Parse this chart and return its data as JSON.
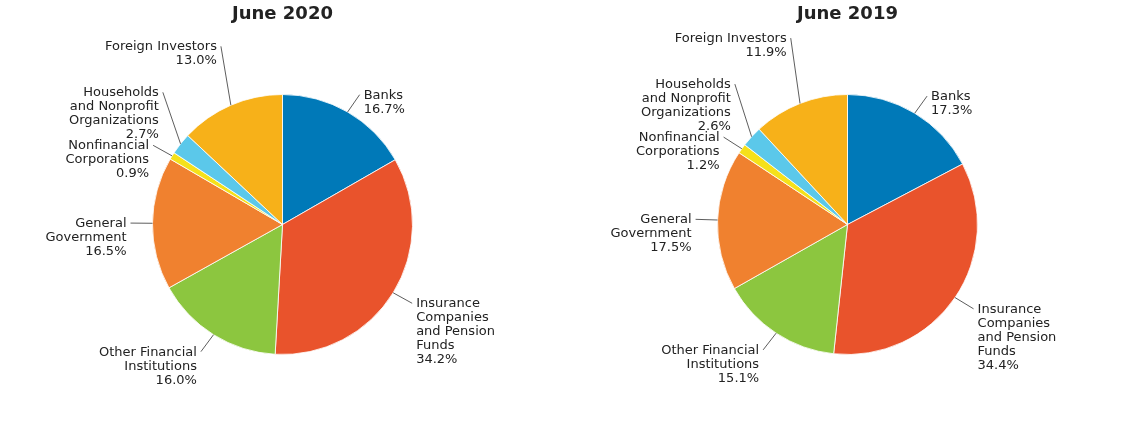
{
  "chart_data": [
    {
      "type": "pie",
      "title": "June 2020",
      "categories": [
        "Banks",
        "Insurance\nCompanies\nand Pension\nFunds",
        "Other Financial\nInstitutions",
        "General\nGovernment",
        "Nonfinancial\nCorporations",
        "Households\nand Nonprofit\nOrganizations",
        "Foreign Investors"
      ],
      "values": [
        16.7,
        34.2,
        16.0,
        16.5,
        0.9,
        2.7,
        13.0
      ],
      "value_labels": [
        "16.7%",
        "34.2%",
        "16.0%",
        "16.5%",
        "0.9%",
        "2.7%",
        "13.0%"
      ],
      "colors": [
        "#0079b8",
        "#e9532c",
        "#8cc63f",
        "#f0812f",
        "#f5e11a",
        "#5bc8ea",
        "#f7b119"
      ],
      "legend": false
    },
    {
      "type": "pie",
      "title": "June 2019",
      "categories": [
        "Banks",
        "Insurance\nCompanies\nand Pension\nFunds",
        "Other Financial\nInstitutions",
        "General\nGovernment",
        "Nonfinancial\nCorporations",
        "Households\nand Nonprofit\nOrganizations",
        "Foreign Investors"
      ],
      "values": [
        17.3,
        34.4,
        15.1,
        17.5,
        1.2,
        2.6,
        11.9
      ],
      "value_labels": [
        "17.3%",
        "34.4%",
        "15.1%",
        "17.5%",
        "1.2%",
        "2.6%",
        "11.9%"
      ],
      "colors": [
        "#0079b8",
        "#e9532c",
        "#8cc63f",
        "#f0812f",
        "#f5e11a",
        "#5bc8ea",
        "#f7b119"
      ],
      "legend": false
    }
  ]
}
